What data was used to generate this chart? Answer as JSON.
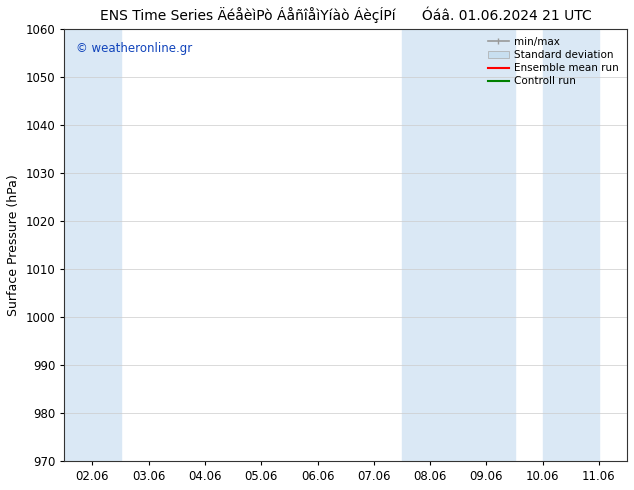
{
  "title": "ENS Time Series ÄéåèìPò ÁåñîåìYíàò ÁèçÍPí      Óáâ. 01.06.2024 21 UTC",
  "ylabel": "Surface Pressure (hPa)",
  "ylim": [
    970,
    1060
  ],
  "yticks": [
    970,
    980,
    990,
    1000,
    1010,
    1020,
    1030,
    1040,
    1050,
    1060
  ],
  "xtick_labels": [
    "02.06",
    "03.06",
    "04.06",
    "05.06",
    "06.06",
    "07.06",
    "08.06",
    "09.06",
    "10.06",
    "11.06"
  ],
  "n_ticks": 10,
  "xlim": [
    0,
    9
  ],
  "shaded_bands": [
    {
      "x_start": 0.0,
      "x_end": 1.0,
      "color": "#dae8f5"
    },
    {
      "x_start": 6.0,
      "x_end": 8.0,
      "color": "#dae8f5"
    },
    {
      "x_start": 9.0,
      "x_end": 9.0,
      "color": "#dae8f5"
    }
  ],
  "watermark": "© weatheronline.gr",
  "watermark_color": "#1144bb",
  "legend_items": [
    {
      "label": "min/max",
      "color": "#999999",
      "type": "errorbar"
    },
    {
      "label": "Standard deviation",
      "color": "#c8dff0",
      "type": "fill"
    },
    {
      "label": "Ensemble mean run",
      "color": "red",
      "type": "line"
    },
    {
      "label": "Controll run",
      "color": "green",
      "type": "line"
    }
  ],
  "bg_color": "#ffffff",
  "title_fontsize": 10,
  "axis_fontsize": 9,
  "tick_fontsize": 8.5,
  "band_color": "#dae8f5"
}
